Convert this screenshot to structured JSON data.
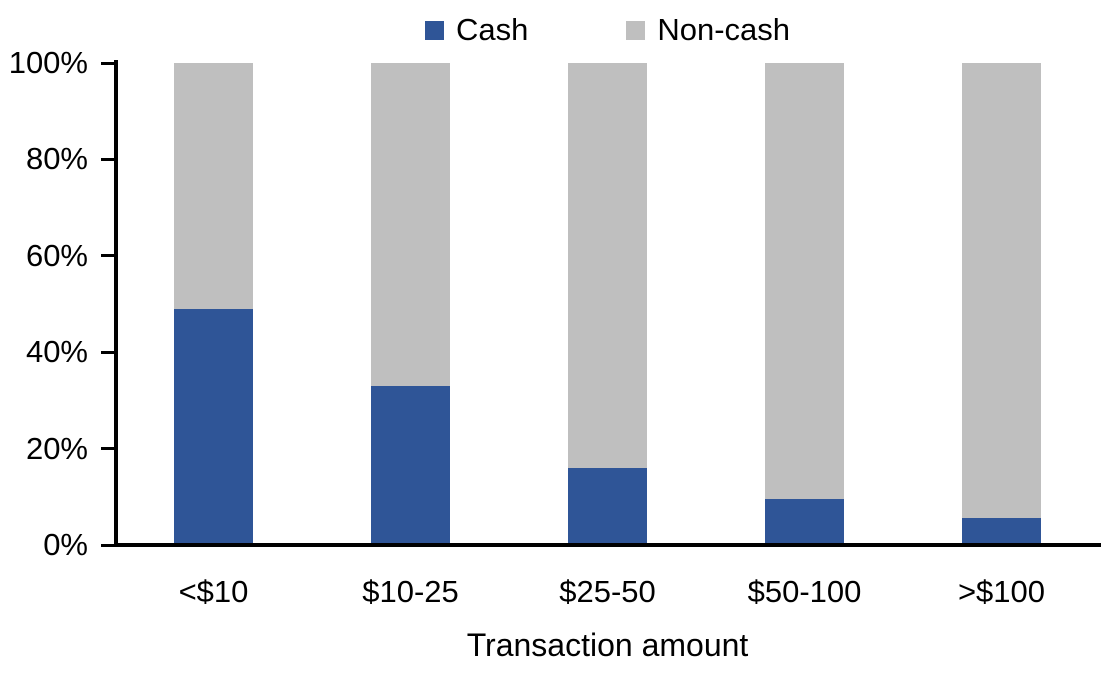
{
  "chart_data": {
    "type": "bar",
    "subtype": "stacked-100-percent",
    "title": "",
    "xlabel": "Transaction amount",
    "ylabel": "",
    "categories": [
      "<$10",
      "$10-25",
      "$25-50",
      "$50-100",
      ">$100"
    ],
    "series": [
      {
        "name": "Cash",
        "color": "#2F5597",
        "values": [
          49,
          33,
          16,
          9.5,
          5.5
        ]
      },
      {
        "name": "Non-cash",
        "color": "#BFBFBF",
        "values": [
          51,
          67,
          84,
          90.5,
          94.5
        ]
      }
    ],
    "y_axis": {
      "min": 0,
      "max": 100,
      "ticks": [
        "0%",
        "20%",
        "40%",
        "60%",
        "80%",
        "100%"
      ]
    },
    "legend_position": "top",
    "grid": false,
    "axis_color": "#000000",
    "text_color": "#000000",
    "background_color": "#FFFFFF"
  }
}
